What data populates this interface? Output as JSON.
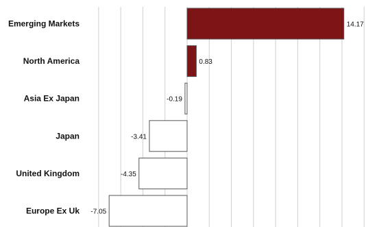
{
  "chart_data": {
    "type": "bar",
    "orientation": "horizontal",
    "categories": [
      "Emerging Markets",
      "North America",
      "Asia Ex Japan",
      "Japan",
      "United Kingdom",
      "Europe Ex Uk"
    ],
    "values": [
      14.17,
      0.83,
      -0.19,
      -3.41,
      -4.35,
      -7.05
    ],
    "value_labels": [
      "14.17",
      "0.83",
      "-0.19",
      "-3.41",
      "-4.35",
      "-7.05"
    ],
    "xlim": [
      -10,
      16
    ],
    "grid": true,
    "legend": "none",
    "colors": {
      "positive_fill": "#7d1517",
      "negative_fill": "#ffffff",
      "bar_stroke": "#555555"
    }
  }
}
